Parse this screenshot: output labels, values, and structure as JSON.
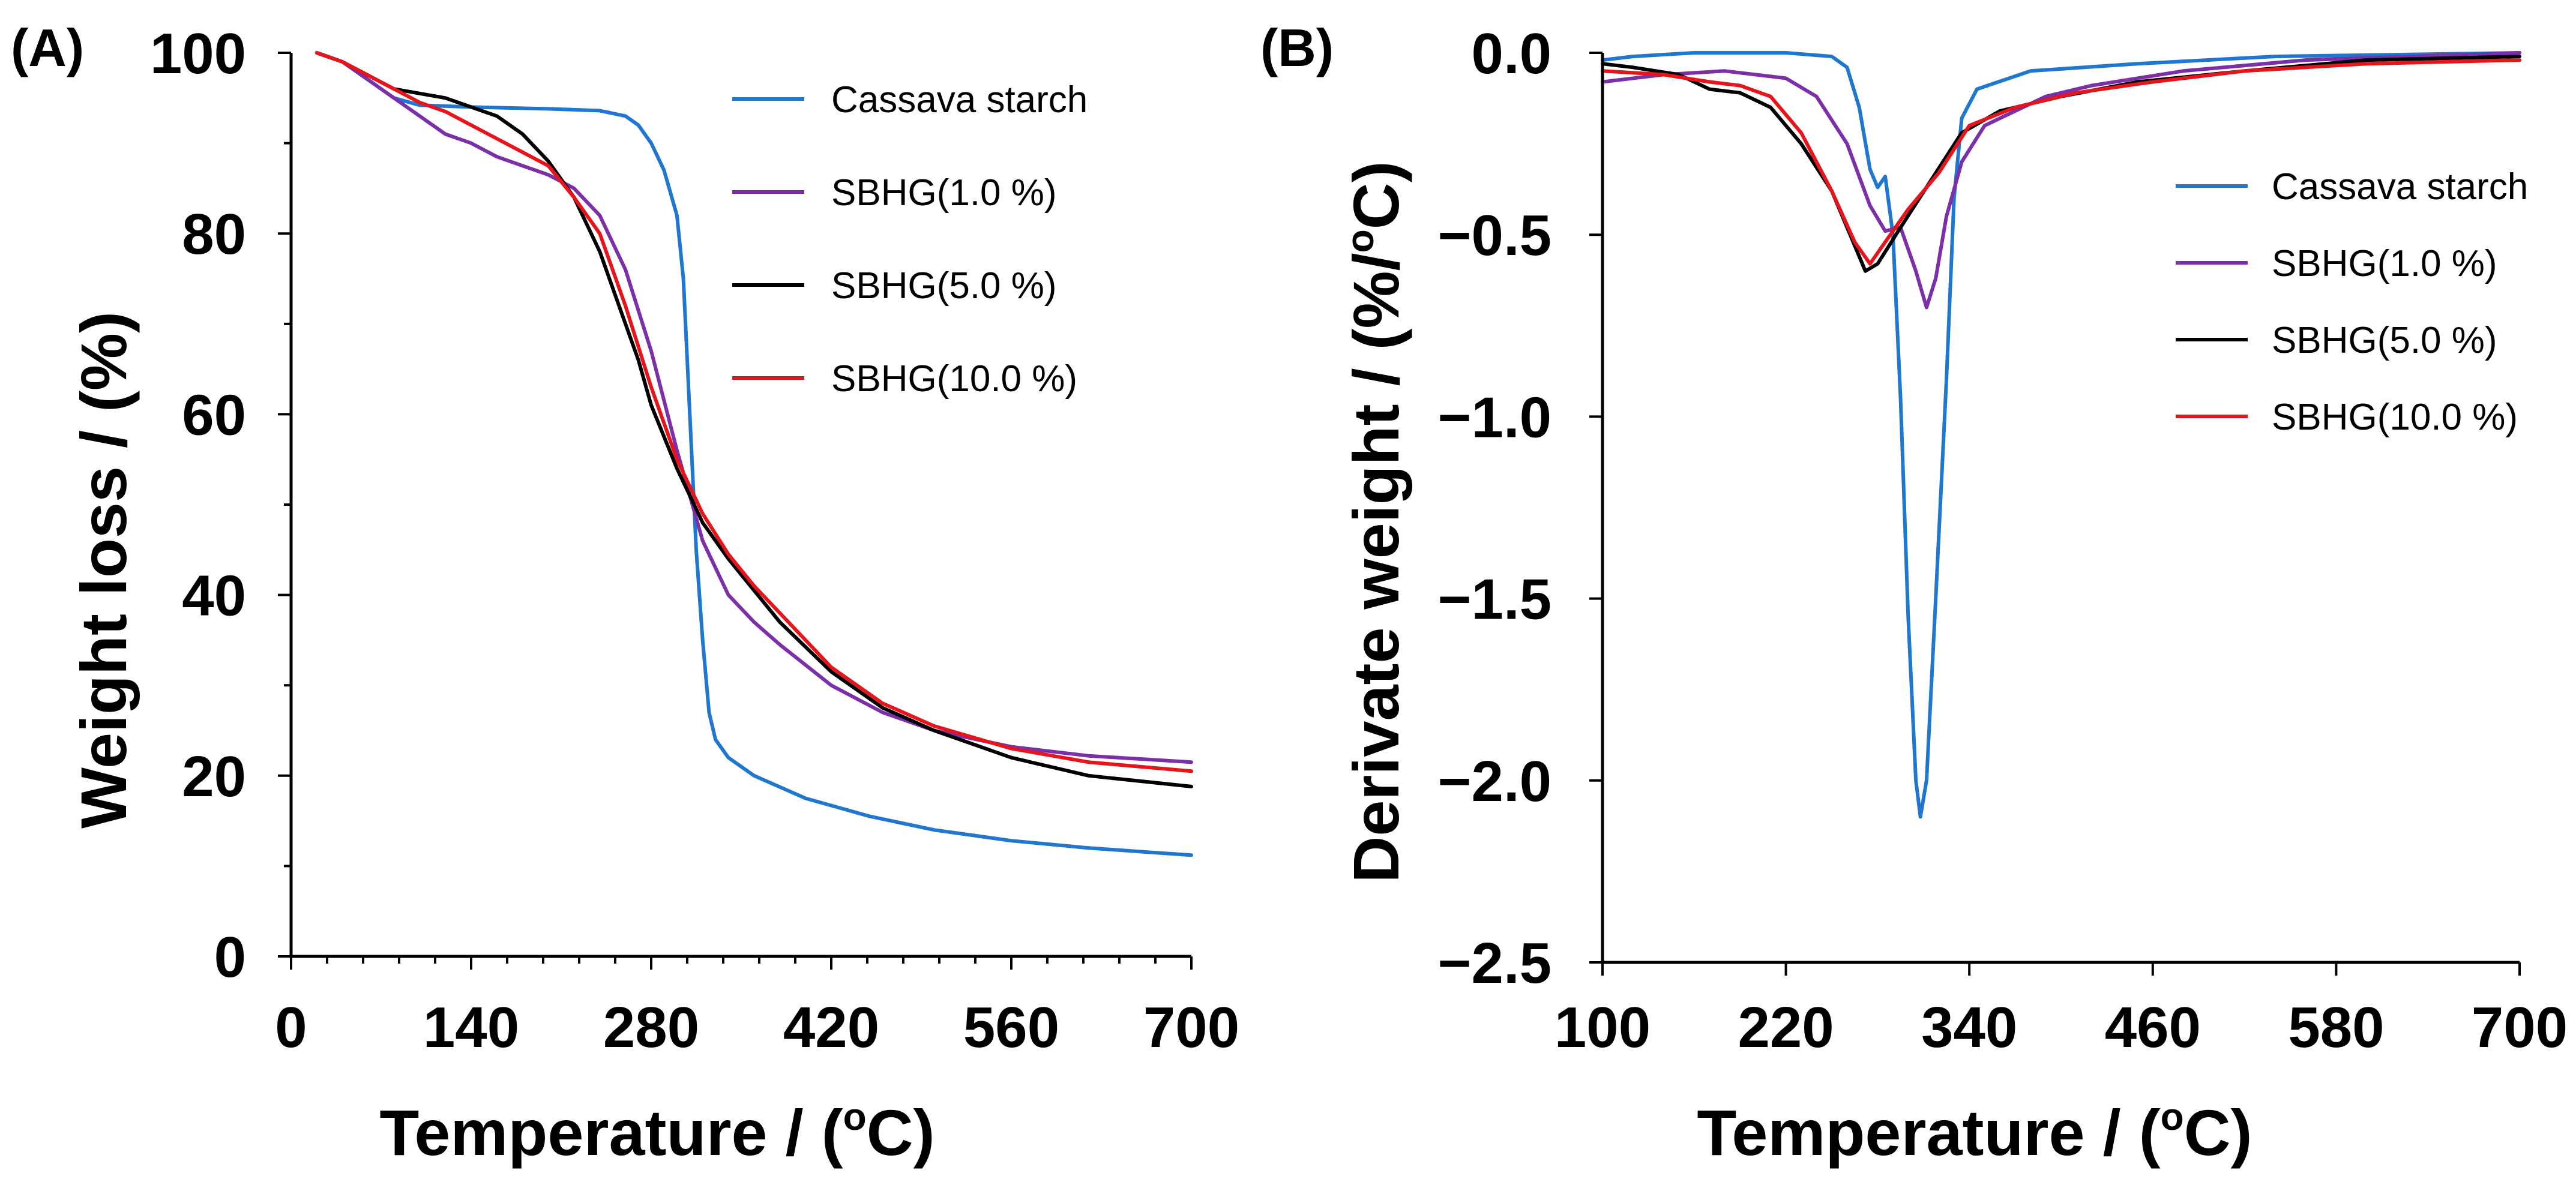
{
  "chart_data": [
    {
      "panel_label": "(A)",
      "type": "line",
      "xlabel": "Temperature /  (",
      "xlabel_sup": "o",
      "xlabel_end": "C)",
      "ylabel": "Weight loss / (%)",
      "xlim": [
        0,
        700
      ],
      "ylim": [
        0,
        100
      ],
      "xticks": [
        0,
        140,
        280,
        420,
        560,
        700
      ],
      "xtick_labels": [
        "0",
        "140",
        "280",
        "420",
        "560",
        "700"
      ],
      "yticks": [
        0,
        20,
        40,
        60,
        80,
        100
      ],
      "ytick_labels": [
        "0",
        "20",
        "40",
        "60",
        "80",
        "100"
      ],
      "legend_position": "top-right",
      "series": [
        {
          "name": "Cassava starch",
          "color": "#1f77d0",
          "points": [
            [
              20,
              100
            ],
            [
              40,
              99
            ],
            [
              60,
              97
            ],
            [
              80,
              95
            ],
            [
              100,
              94.2
            ],
            [
              140,
              94
            ],
            [
              200,
              93.8
            ],
            [
              240,
              93.6
            ],
            [
              260,
              93
            ],
            [
              270,
              92
            ],
            [
              280,
              90
            ],
            [
              290,
              87
            ],
            [
              300,
              82
            ],
            [
              305,
              75
            ],
            [
              310,
              60
            ],
            [
              315,
              45
            ],
            [
              320,
              35
            ],
            [
              325,
              27
            ],
            [
              330,
              24
            ],
            [
              340,
              22
            ],
            [
              360,
              20
            ],
            [
              400,
              17.5
            ],
            [
              450,
              15.5
            ],
            [
              500,
              14
            ],
            [
              560,
              12.8
            ],
            [
              620,
              12
            ],
            [
              700,
              11.2
            ]
          ]
        },
        {
          "name": "SBHG(1.0 %)",
          "color": "#7b2fa8",
          "points": [
            [
              20,
              100
            ],
            [
              40,
              99
            ],
            [
              60,
              97
            ],
            [
              80,
              95
            ],
            [
              100,
              93
            ],
            [
              120,
              91
            ],
            [
              140,
              90
            ],
            [
              160,
              88.5
            ],
            [
              180,
              87.5
            ],
            [
              200,
              86.5
            ],
            [
              220,
              85
            ],
            [
              240,
              82
            ],
            [
              260,
              76
            ],
            [
              280,
              67
            ],
            [
              300,
              56
            ],
            [
              320,
              46
            ],
            [
              340,
              40
            ],
            [
              360,
              37
            ],
            [
              380,
              34.5
            ],
            [
              420,
              30
            ],
            [
              460,
              27
            ],
            [
              500,
              25
            ],
            [
              560,
              23.2
            ],
            [
              620,
              22.2
            ],
            [
              700,
              21.5
            ]
          ]
        },
        {
          "name": "SBHG(5.0 %)",
          "color": "#000000",
          "points": [
            [
              20,
              100
            ],
            [
              40,
              99
            ],
            [
              60,
              97.5
            ],
            [
              80,
              96
            ],
            [
              100,
              95.5
            ],
            [
              120,
              95
            ],
            [
              140,
              94
            ],
            [
              160,
              93
            ],
            [
              180,
              91
            ],
            [
              200,
              88
            ],
            [
              220,
              84
            ],
            [
              240,
              78
            ],
            [
              260,
              70
            ],
            [
              270,
              66
            ],
            [
              280,
              61
            ],
            [
              300,
              54
            ],
            [
              320,
              48
            ],
            [
              340,
              44
            ],
            [
              360,
              40.5
            ],
            [
              380,
              37
            ],
            [
              420,
              31.5
            ],
            [
              460,
              27.5
            ],
            [
              500,
              25
            ],
            [
              560,
              22
            ],
            [
              620,
              20
            ],
            [
              700,
              18.8
            ]
          ]
        },
        {
          "name": "SBHG(10.0 %)",
          "color": "#e8141c",
          "points": [
            [
              20,
              100
            ],
            [
              40,
              99
            ],
            [
              60,
              97.5
            ],
            [
              80,
              96
            ],
            [
              100,
              94.5
            ],
            [
              120,
              93.5
            ],
            [
              140,
              92
            ],
            [
              160,
              90.5
            ],
            [
              180,
              89
            ],
            [
              200,
              87.5
            ],
            [
              220,
              84
            ],
            [
              240,
              80
            ],
            [
              260,
              72
            ],
            [
              280,
              63
            ],
            [
              300,
              55
            ],
            [
              320,
              49
            ],
            [
              340,
              44.5
            ],
            [
              360,
              41
            ],
            [
              380,
              38
            ],
            [
              420,
              32
            ],
            [
              460,
              28
            ],
            [
              500,
              25.5
            ],
            [
              560,
              23
            ],
            [
              620,
              21.5
            ],
            [
              700,
              20.5
            ]
          ]
        }
      ]
    },
    {
      "panel_label": "(B)",
      "type": "line",
      "xlabel": "Temperature /  (",
      "xlabel_sup": "o",
      "xlabel_end": "C)",
      "ylabel": "Derivate weight / (%/",
      "ylabel_sup": "o",
      "ylabel_end": "C)",
      "xlim": [
        100,
        700
      ],
      "ylim": [
        -2.5,
        0
      ],
      "xticks": [
        100,
        220,
        340,
        460,
        580,
        700
      ],
      "xtick_labels": [
        "100",
        "220",
        "340",
        "460",
        "580",
        "700"
      ],
      "yticks": [
        0,
        -0.5,
        -1,
        -1.5,
        -2,
        -2.5
      ],
      "ytick_labels": [
        "0.0",
        "−0.5",
        "−1.0",
        "−1.5",
        "−2.0",
        "−2.5"
      ],
      "legend_position": "right",
      "series": [
        {
          "name": "Cassava starch",
          "color": "#1f77d0",
          "points": [
            [
              100,
              -0.02
            ],
            [
              120,
              -0.01
            ],
            [
              160,
              0
            ],
            [
              220,
              0
            ],
            [
              250,
              -0.01
            ],
            [
              260,
              -0.04
            ],
            [
              268,
              -0.15
            ],
            [
              275,
              -0.32
            ],
            [
              280,
              -0.37
            ],
            [
              285,
              -0.34
            ],
            [
              290,
              -0.5
            ],
            [
              295,
              -0.95
            ],
            [
              300,
              -1.55
            ],
            [
              305,
              -2.0
            ],
            [
              308,
              -2.1
            ],
            [
              312,
              -2.0
            ],
            [
              318,
              -1.5
            ],
            [
              325,
              -0.9
            ],
            [
              330,
              -0.4
            ],
            [
              335,
              -0.18
            ],
            [
              345,
              -0.1
            ],
            [
              380,
              -0.05
            ],
            [
              450,
              -0.03
            ],
            [
              540,
              -0.01
            ],
            [
              700,
              0
            ]
          ]
        },
        {
          "name": "SBHG(1.0 %)",
          "color": "#7b2fa8",
          "points": [
            [
              100,
              -0.08
            ],
            [
              140,
              -0.06
            ],
            [
              180,
              -0.05
            ],
            [
              220,
              -0.07
            ],
            [
              240,
              -0.12
            ],
            [
              260,
              -0.25
            ],
            [
              275,
              -0.42
            ],
            [
              285,
              -0.49
            ],
            [
              295,
              -0.48
            ],
            [
              305,
              -0.6
            ],
            [
              312,
              -0.7
            ],
            [
              318,
              -0.62
            ],
            [
              325,
              -0.45
            ],
            [
              335,
              -0.3
            ],
            [
              350,
              -0.2
            ],
            [
              370,
              -0.16
            ],
            [
              390,
              -0.12
            ],
            [
              420,
              -0.09
            ],
            [
              480,
              -0.05
            ],
            [
              560,
              -0.02
            ],
            [
              700,
              0
            ]
          ]
        },
        {
          "name": "SBHG(5.0 %)",
          "color": "#000000",
          "points": [
            [
              100,
              -0.03
            ],
            [
              120,
              -0.04
            ],
            [
              150,
              -0.06
            ],
            [
              170,
              -0.1
            ],
            [
              190,
              -0.11
            ],
            [
              210,
              -0.15
            ],
            [
              230,
              -0.25
            ],
            [
              250,
              -0.38
            ],
            [
              265,
              -0.53
            ],
            [
              272,
              -0.6
            ],
            [
              280,
              -0.58
            ],
            [
              295,
              -0.48
            ],
            [
              315,
              -0.35
            ],
            [
              335,
              -0.22
            ],
            [
              360,
              -0.16
            ],
            [
              400,
              -0.12
            ],
            [
              450,
              -0.08
            ],
            [
              520,
              -0.05
            ],
            [
              600,
              -0.02
            ],
            [
              700,
              -0.01
            ]
          ]
        },
        {
          "name": "SBHG(10.0 %)",
          "color": "#e8141c",
          "points": [
            [
              100,
              -0.05
            ],
            [
              140,
              -0.06
            ],
            [
              170,
              -0.08
            ],
            [
              190,
              -0.09
            ],
            [
              210,
              -0.12
            ],
            [
              230,
              -0.22
            ],
            [
              250,
              -0.38
            ],
            [
              265,
              -0.52
            ],
            [
              275,
              -0.58
            ],
            [
              285,
              -0.52
            ],
            [
              300,
              -0.43
            ],
            [
              320,
              -0.33
            ],
            [
              340,
              -0.2
            ],
            [
              370,
              -0.15
            ],
            [
              410,
              -0.11
            ],
            [
              460,
              -0.08
            ],
            [
              520,
              -0.05
            ],
            [
              600,
              -0.03
            ],
            [
              700,
              -0.02
            ]
          ]
        }
      ]
    }
  ]
}
